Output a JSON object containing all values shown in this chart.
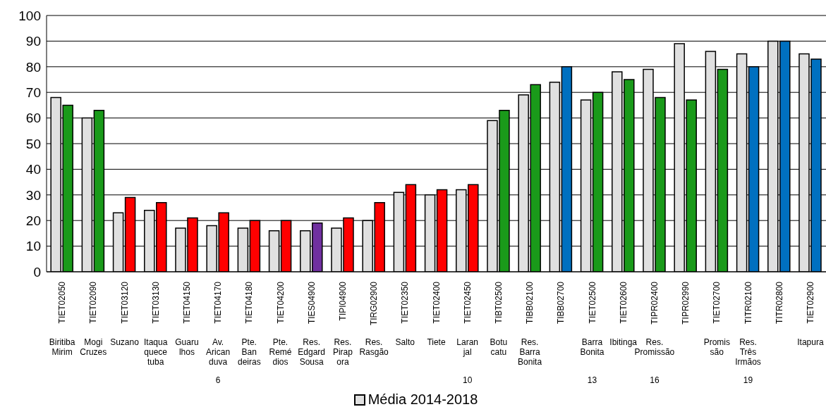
{
  "chart_data": {
    "type": "bar",
    "categories": [
      "TIET02050\nBiritiba Mirim",
      "TIET02090\nMogi Cruzes",
      "TIET03120\nSuzano",
      "TIET03130\nItaqua quece tuba",
      "TIET04150\nGuaru lhos",
      "TIET04170\nAv. Arican duva\n6",
      "TIET04180\nPte. Ban deiras",
      "TIET04200\nPte. Remé dios",
      "TIES04900\nRes. Edgard Sousa",
      "TIPI04900\nRes. Pirap ora",
      "TIRG02900\nRes. Rasgão",
      "TIET02350\nSalto",
      "TIET02400\nTiete",
      "TIET02450\nLaran jal\n10",
      "TIBT02500\nBotu catu",
      "TIBB02100\nRes. Barra Bonita",
      "TIBB02700",
      "TIET02500\nBarra Bonita\n13",
      "TIET02600\nIbitinga",
      "TIPR02400\nRes. Promissão\n16",
      "TIPR02990",
      "TIET02700\nPromis são",
      "TITR02100\nRes. Três Irmãos\n19",
      "TITR02800",
      "TIET02900\nItapura"
    ],
    "series": [
      {
        "name": "Média 2014-2018",
        "color": "#e0e0e0",
        "values": [
          68,
          60,
          23,
          24,
          17,
          18,
          17,
          16,
          16,
          17,
          20,
          31,
          30,
          32,
          59,
          69,
          74,
          67,
          78,
          79,
          89,
          86,
          85,
          90,
          85
        ]
      },
      {
        "colors": [
          "#1a9a1a",
          "#1a9a1a",
          "#ff0000",
          "#ff0000",
          "#ff0000",
          "#ff0000",
          "#ff0000",
          "#ff0000",
          "#7030a0",
          "#ff0000",
          "#ff0000",
          "#ff0000",
          "#ff0000",
          "#ff0000",
          "#1a9a1a",
          "#1a9a1a",
          "#0070c0",
          "#1a9a1a",
          "#1a9a1a",
          "#1a9a1a",
          "#1a9a1a",
          "#1a9a1a",
          "#0070c0",
          "#0070c0",
          "#0070c0"
        ],
        "values": [
          65,
          63,
          29,
          27,
          21,
          23,
          20,
          20,
          19,
          21,
          27,
          34,
          32,
          34,
          63,
          73,
          80,
          70,
          75,
          68,
          67,
          79,
          80,
          90,
          83
        ]
      }
    ],
    "ylim": [
      0,
      100
    ],
    "yticks": [
      0,
      10,
      20,
      30,
      40,
      50,
      60,
      70,
      80,
      90,
      100
    ],
    "grid": "y",
    "legend": "bottom"
  }
}
